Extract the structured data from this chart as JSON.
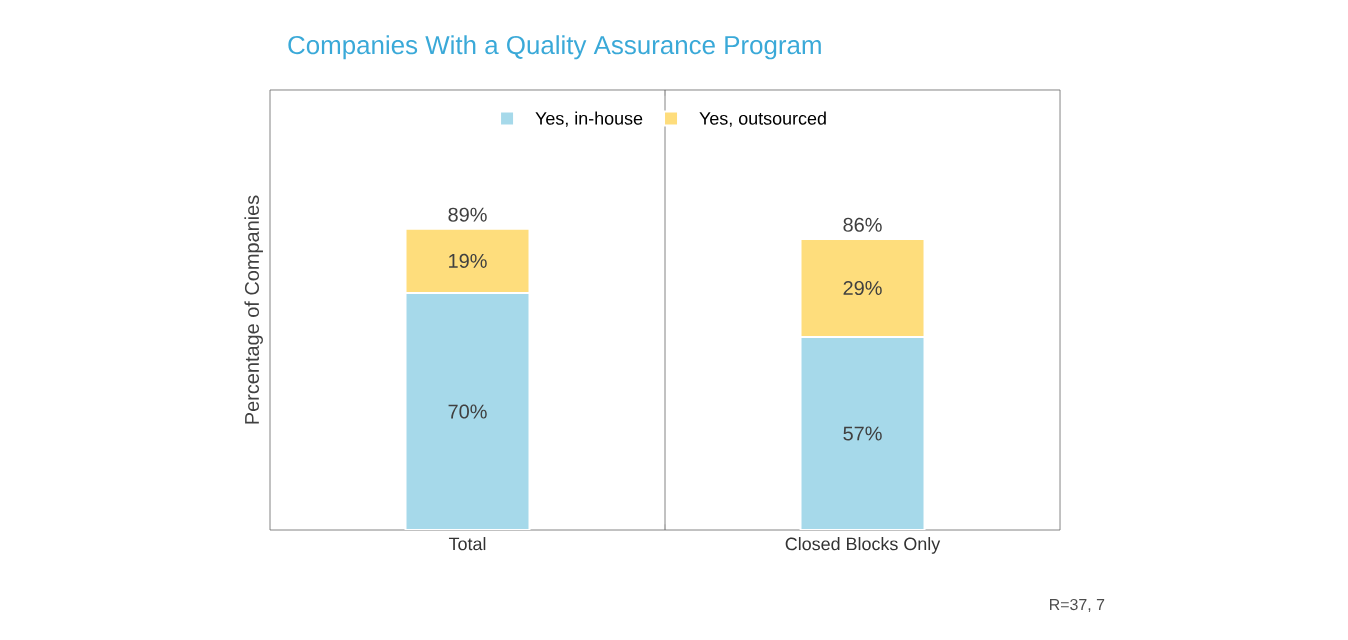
{
  "chart_data": {
    "type": "bar",
    "title": "Companies With a Quality Assurance Program",
    "ylabel": "Percentage of Companies",
    "categories": [
      "Total",
      "Closed Blocks Only"
    ],
    "stacked": true,
    "legend": "top",
    "ylim": [
      0,
      130
    ],
    "series": [
      {
        "name": "Yes, in-house",
        "color": "#a6d9ea",
        "values": [
          70,
          57
        ],
        "value_labels": [
          "70%",
          "57%"
        ]
      },
      {
        "name": "Yes, outsourced",
        "color": "#fedd7c",
        "values": [
          19,
          29
        ],
        "value_labels": [
          "19%",
          "29%"
        ]
      }
    ],
    "totals": [
      "89%",
      "86%"
    ],
    "annotations": [
      "R=37, 7"
    ]
  }
}
